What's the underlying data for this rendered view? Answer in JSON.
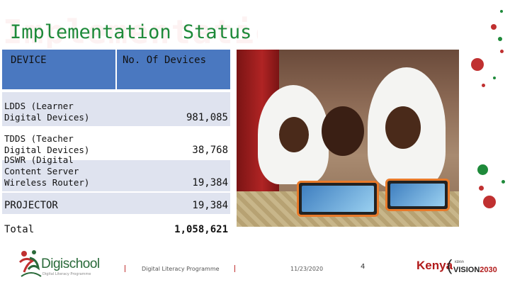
{
  "slide": {
    "title": "Implementation Status",
    "watermark": "Implementation"
  },
  "table": {
    "headers": [
      "DEVICE",
      "No. Of Devices"
    ],
    "rows": [
      {
        "device": "LDDS (Learner Digital Devices)",
        "count": "981,085"
      },
      {
        "device": "TDDS (Teacher Digital Devices)",
        "count": "38,768"
      },
      {
        "device": "DSWR (Digital Content Server Wireless Router)",
        "count": "19,384"
      },
      {
        "device": "PROJECTOR",
        "count": "19,384"
      },
      {
        "device": "Total",
        "count": "1,058,621"
      }
    ]
  },
  "footer": {
    "programme": "Digital Literacy Programme",
    "date": "11/23/2020",
    "page": "4"
  },
  "logos": {
    "digischool": {
      "name": "Digischool",
      "tagline": "Digital Literacy Programme"
    },
    "kenya_vision": {
      "kenya": "Kenya",
      "small": "KENYA",
      "vision": "VISION",
      "year": "2030"
    }
  },
  "colors": {
    "title": "#1e8a3a",
    "header_bg": "#4a78c0",
    "row_alt_bg": "#dfe3ef",
    "accent_red": "#c03030"
  }
}
